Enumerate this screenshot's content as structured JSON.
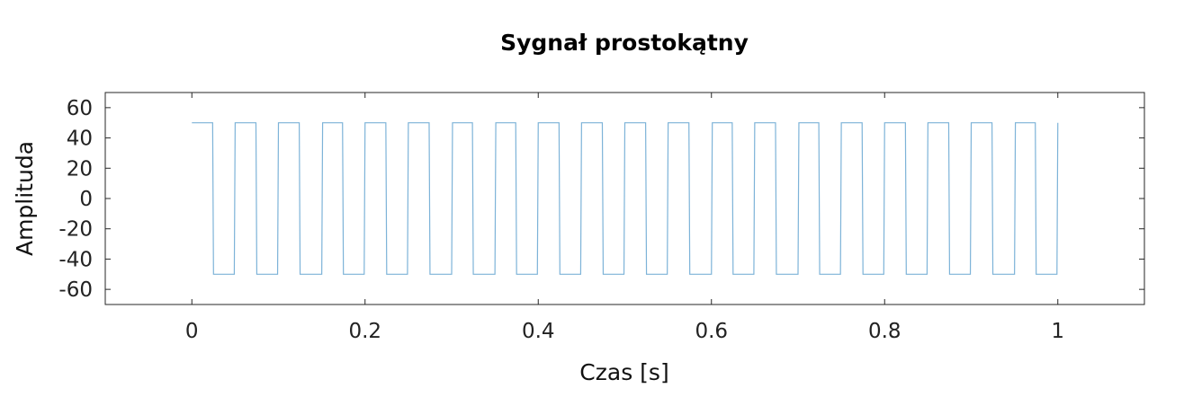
{
  "chart_data": {
    "type": "line",
    "title": "Sygnał prostokątny",
    "xlabel": "Czas [s]",
    "ylabel": "Amplituda",
    "xlim": [
      -0.1,
      1.1
    ],
    "ylim": [
      -70,
      70
    ],
    "xticks": [
      0,
      0.2,
      0.4,
      0.6,
      0.8,
      1
    ],
    "xtick_labels": [
      "0",
      "0.2",
      "0.4",
      "0.6",
      "0.8",
      "1"
    ],
    "yticks": [
      60,
      40,
      20,
      0,
      -20,
      -40,
      -60
    ],
    "ytick_labels": [
      "60",
      "40",
      "20",
      "0",
      "-20",
      "-40",
      "-60"
    ],
    "grid": false,
    "series": [
      {
        "color": "#7db3d8",
        "period": 0.05,
        "duty_cycle": 0.5,
        "high": 50,
        "low": -50,
        "x_start": 0,
        "x_end": 1
      }
    ]
  }
}
